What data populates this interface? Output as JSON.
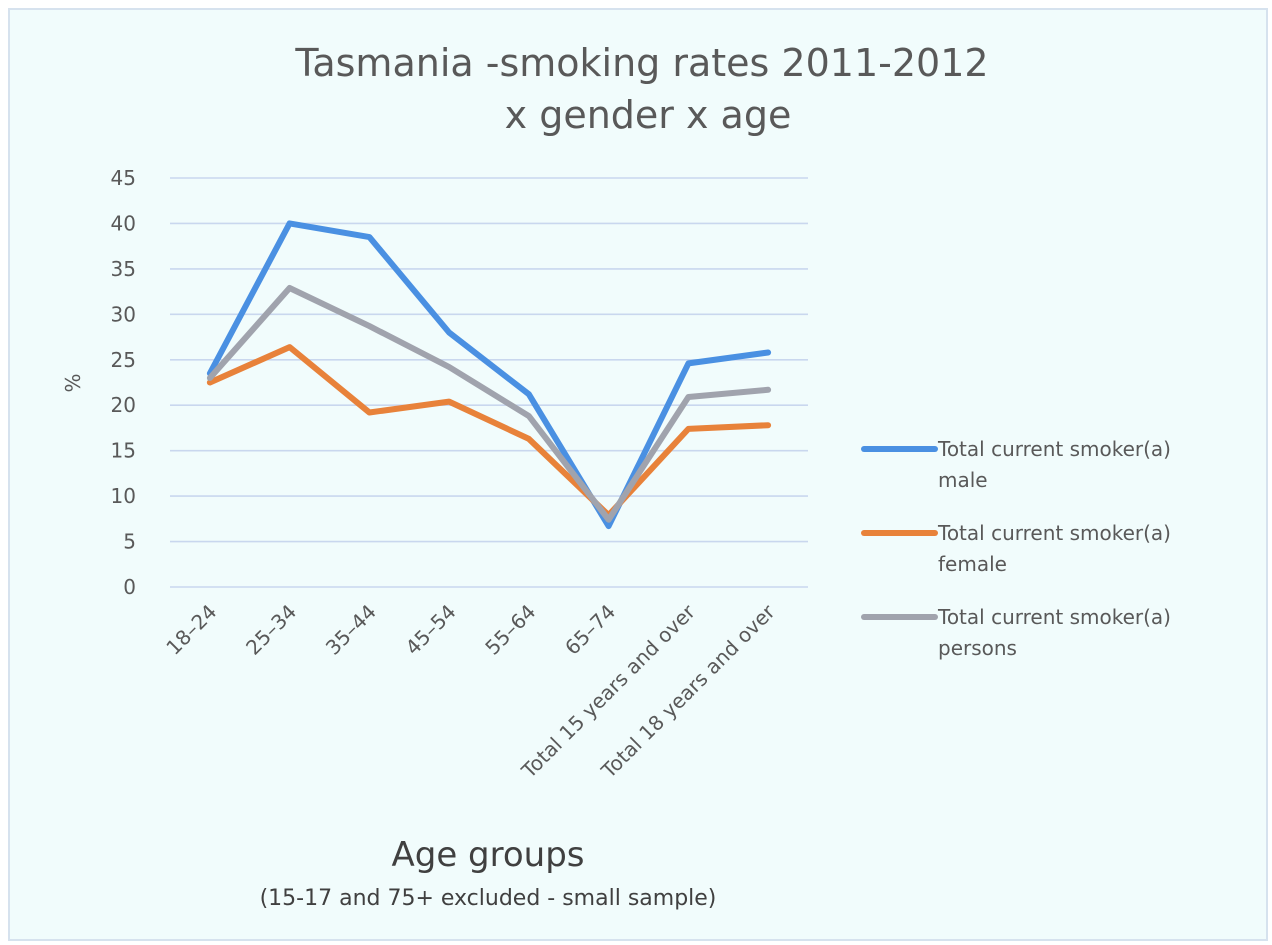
{
  "chart_data": {
    "type": "line",
    "title_line1": "Tasmania -smoking rates 2011-2012",
    "title_line2": "x gender x age",
    "xlabel": "Age groups",
    "xlabel_sub": "(15-17 and 75+ excluded - small sample)",
    "ylabel": "%",
    "ylim": [
      0,
      45
    ],
    "yticks": [
      0,
      5,
      10,
      15,
      20,
      25,
      30,
      35,
      40,
      45
    ],
    "grid": true,
    "legend_position": "right",
    "categories": [
      "18–24",
      "25–34",
      "35–44",
      "45–54",
      "55–64",
      "65–74",
      "Total 15 years and over",
      "Total 18 years and over"
    ],
    "series": [
      {
        "name": "Total current smoker(a) male",
        "legend_line1": "Total current smoker(a)",
        "legend_line2": "male",
        "color": "#4a90e2",
        "values": [
          23.5,
          40.0,
          38.5,
          28.0,
          21.2,
          6.7,
          24.6,
          25.8
        ]
      },
      {
        "name": "Total current smoker(a) female",
        "legend_line1": "Total current smoker(a)",
        "legend_line2": "female",
        "color": "#e8823a",
        "values": [
          22.5,
          26.4,
          19.2,
          20.4,
          16.3,
          7.9,
          17.4,
          17.8
        ]
      },
      {
        "name": "Total current smoker(a) persons",
        "legend_line1": "Total current smoker(a)",
        "legend_line2": "persons",
        "color": "#a0a3ad",
        "values": [
          23.0,
          32.9,
          28.7,
          24.2,
          18.8,
          7.4,
          20.9,
          21.7
        ]
      }
    ]
  }
}
